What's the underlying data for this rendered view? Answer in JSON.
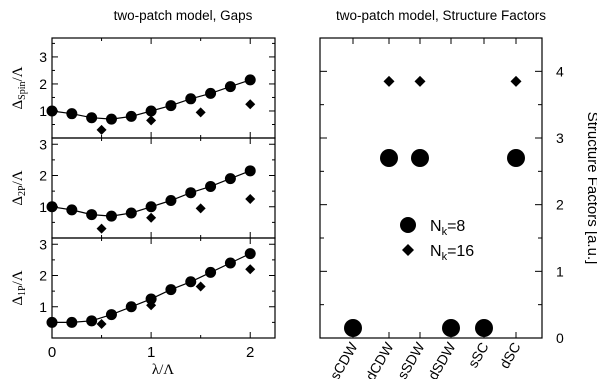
{
  "chart_data": [
    {
      "type": "scatter",
      "panel": "gaps-spin",
      "title": "two-patch model, Gaps",
      "ylabel": {
        "main": "Δ",
        "sub": "Spin",
        "rest": "/Λ"
      },
      "xlim": [
        0,
        2.25
      ],
      "ylim": [
        0,
        3.7
      ],
      "yticks": [
        1,
        2,
        3
      ],
      "series": [
        {
          "marker": "circle",
          "x": [
            0,
            0.2,
            0.4,
            0.6,
            0.8,
            1.0,
            1.2,
            1.4,
            1.6,
            1.8,
            2.0
          ],
          "y": [
            1.0,
            0.9,
            0.75,
            0.7,
            0.8,
            1.0,
            1.2,
            1.45,
            1.65,
            1.9,
            2.15
          ]
        },
        {
          "marker": "diamond",
          "x": [
            0.5,
            1.0,
            1.5,
            2.0
          ],
          "y": [
            0.3,
            0.65,
            0.95,
            1.25
          ]
        }
      ],
      "fit_line": {
        "x": [
          0,
          0.2,
          0.4,
          0.6,
          0.8,
          1.0,
          1.2,
          1.4,
          1.6,
          1.8,
          2.0
        ],
        "y": [
          1.0,
          0.9,
          0.75,
          0.7,
          0.8,
          1.0,
          1.2,
          1.45,
          1.65,
          1.9,
          2.15
        ]
      }
    },
    {
      "type": "scatter",
      "panel": "gaps-2p",
      "ylabel": {
        "main": "Δ",
        "sub": "2P",
        "rest": "/Λ"
      },
      "xlim": [
        0,
        2.25
      ],
      "ylim": [
        0,
        3.2
      ],
      "yticks": [
        1,
        2,
        3
      ],
      "series": [
        {
          "marker": "circle",
          "x": [
            0,
            0.2,
            0.4,
            0.6,
            0.8,
            1.0,
            1.2,
            1.4,
            1.6,
            1.8,
            2.0
          ],
          "y": [
            1.0,
            0.9,
            0.75,
            0.7,
            0.8,
            1.0,
            1.2,
            1.45,
            1.65,
            1.9,
            2.15
          ]
        },
        {
          "marker": "diamond",
          "x": [
            0.5,
            1.0,
            1.5,
            2.0
          ],
          "y": [
            0.3,
            0.65,
            0.95,
            1.25
          ]
        }
      ],
      "fit_line": {
        "x": [
          0,
          0.2,
          0.4,
          0.6,
          0.8,
          1.0,
          1.2,
          1.4,
          1.6,
          1.8,
          2.0
        ],
        "y": [
          1.0,
          0.9,
          0.75,
          0.7,
          0.8,
          1.0,
          1.2,
          1.45,
          1.65,
          1.9,
          2.15
        ]
      }
    },
    {
      "type": "scatter",
      "panel": "gaps-1p",
      "ylabel": {
        "main": "Δ",
        "sub": "1P",
        "rest": "/Λ"
      },
      "xlabel": "λ/Λ",
      "xlim": [
        0,
        2.25
      ],
      "ylim": [
        0,
        3.2
      ],
      "xticks": [
        0,
        1,
        2
      ],
      "yticks": [
        1,
        2,
        3
      ],
      "series": [
        {
          "marker": "circle",
          "x": [
            0,
            0.2,
            0.4,
            0.6,
            0.8,
            1.0,
            1.2,
            1.4,
            1.6,
            1.8,
            2.0
          ],
          "y": [
            0.5,
            0.5,
            0.55,
            0.75,
            1.0,
            1.25,
            1.55,
            1.8,
            2.1,
            2.4,
            2.7
          ]
        },
        {
          "marker": "diamond",
          "x": [
            0.5,
            1.0,
            1.5,
            2.0
          ],
          "y": [
            0.45,
            1.05,
            1.65,
            2.2
          ]
        }
      ],
      "fit_line": {
        "x": [
          0,
          0.2,
          0.4,
          0.6,
          0.8,
          1.0,
          1.2,
          1.4,
          1.6,
          1.8,
          2.0
        ],
        "y": [
          0.5,
          0.5,
          0.55,
          0.75,
          1.0,
          1.25,
          1.55,
          1.8,
          2.1,
          2.4,
          2.7
        ]
      }
    },
    {
      "type": "scatter",
      "panel": "structure-factors",
      "title": "two-patch model, Structure Factors",
      "ylabel": "Structure Factors [a.u.]",
      "categories": [
        "sCDW",
        "dCDW",
        "sSDW",
        "dSDW",
        "sSC",
        "dSC"
      ],
      "ylim": [
        0,
        4.5
      ],
      "yticks": [
        0,
        1,
        2,
        3,
        4
      ],
      "series": [
        {
          "name": "Nk=8",
          "marker": "circle",
          "values": [
            0.15,
            2.7,
            2.7,
            0.15,
            0.15,
            2.7
          ]
        },
        {
          "name": "Nk=16",
          "marker": "diamond",
          "values": [
            null,
            3.85,
            3.85,
            null,
            null,
            3.85
          ]
        }
      ],
      "legend": [
        {
          "marker": "circle",
          "main": "N",
          "sub": "k",
          "rest": "=8"
        },
        {
          "marker": "diamond",
          "main": "N",
          "sub": "k",
          "rest": "=16"
        }
      ]
    }
  ]
}
